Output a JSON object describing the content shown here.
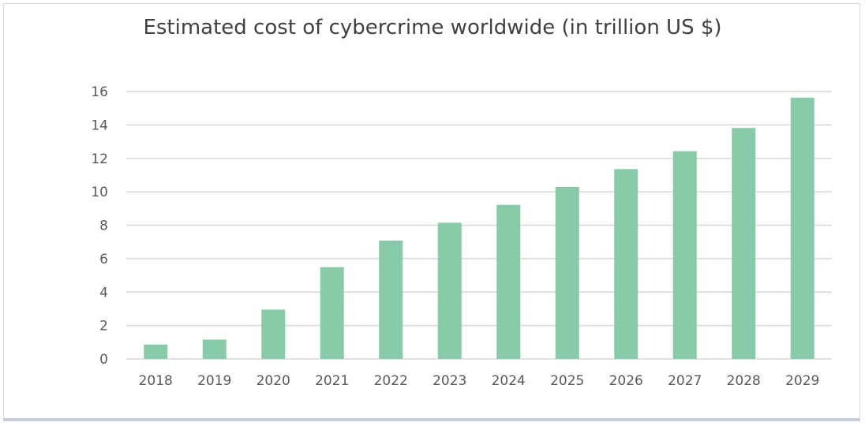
{
  "chart_data": {
    "type": "bar",
    "title": "Estimated cost of cybercrime worldwide (in trillion US $)",
    "xlabel": "",
    "ylabel": "",
    "categories": [
      "2018",
      "2019",
      "2020",
      "2021",
      "2022",
      "2023",
      "2024",
      "2025",
      "2026",
      "2027",
      "2028",
      "2029"
    ],
    "values": [
      0.86,
      1.16,
      2.95,
      5.49,
      7.08,
      8.15,
      9.22,
      10.29,
      11.36,
      12.43,
      13.82,
      15.63
    ],
    "ylim": [
      0,
      16
    ],
    "yticks": [
      "0",
      "2",
      "4",
      "6",
      "8",
      "10",
      "12",
      "14",
      "16"
    ],
    "grid": true,
    "legend": "none",
    "bar_color": "#88cba8",
    "grid_color": "#d9d9d9"
  }
}
